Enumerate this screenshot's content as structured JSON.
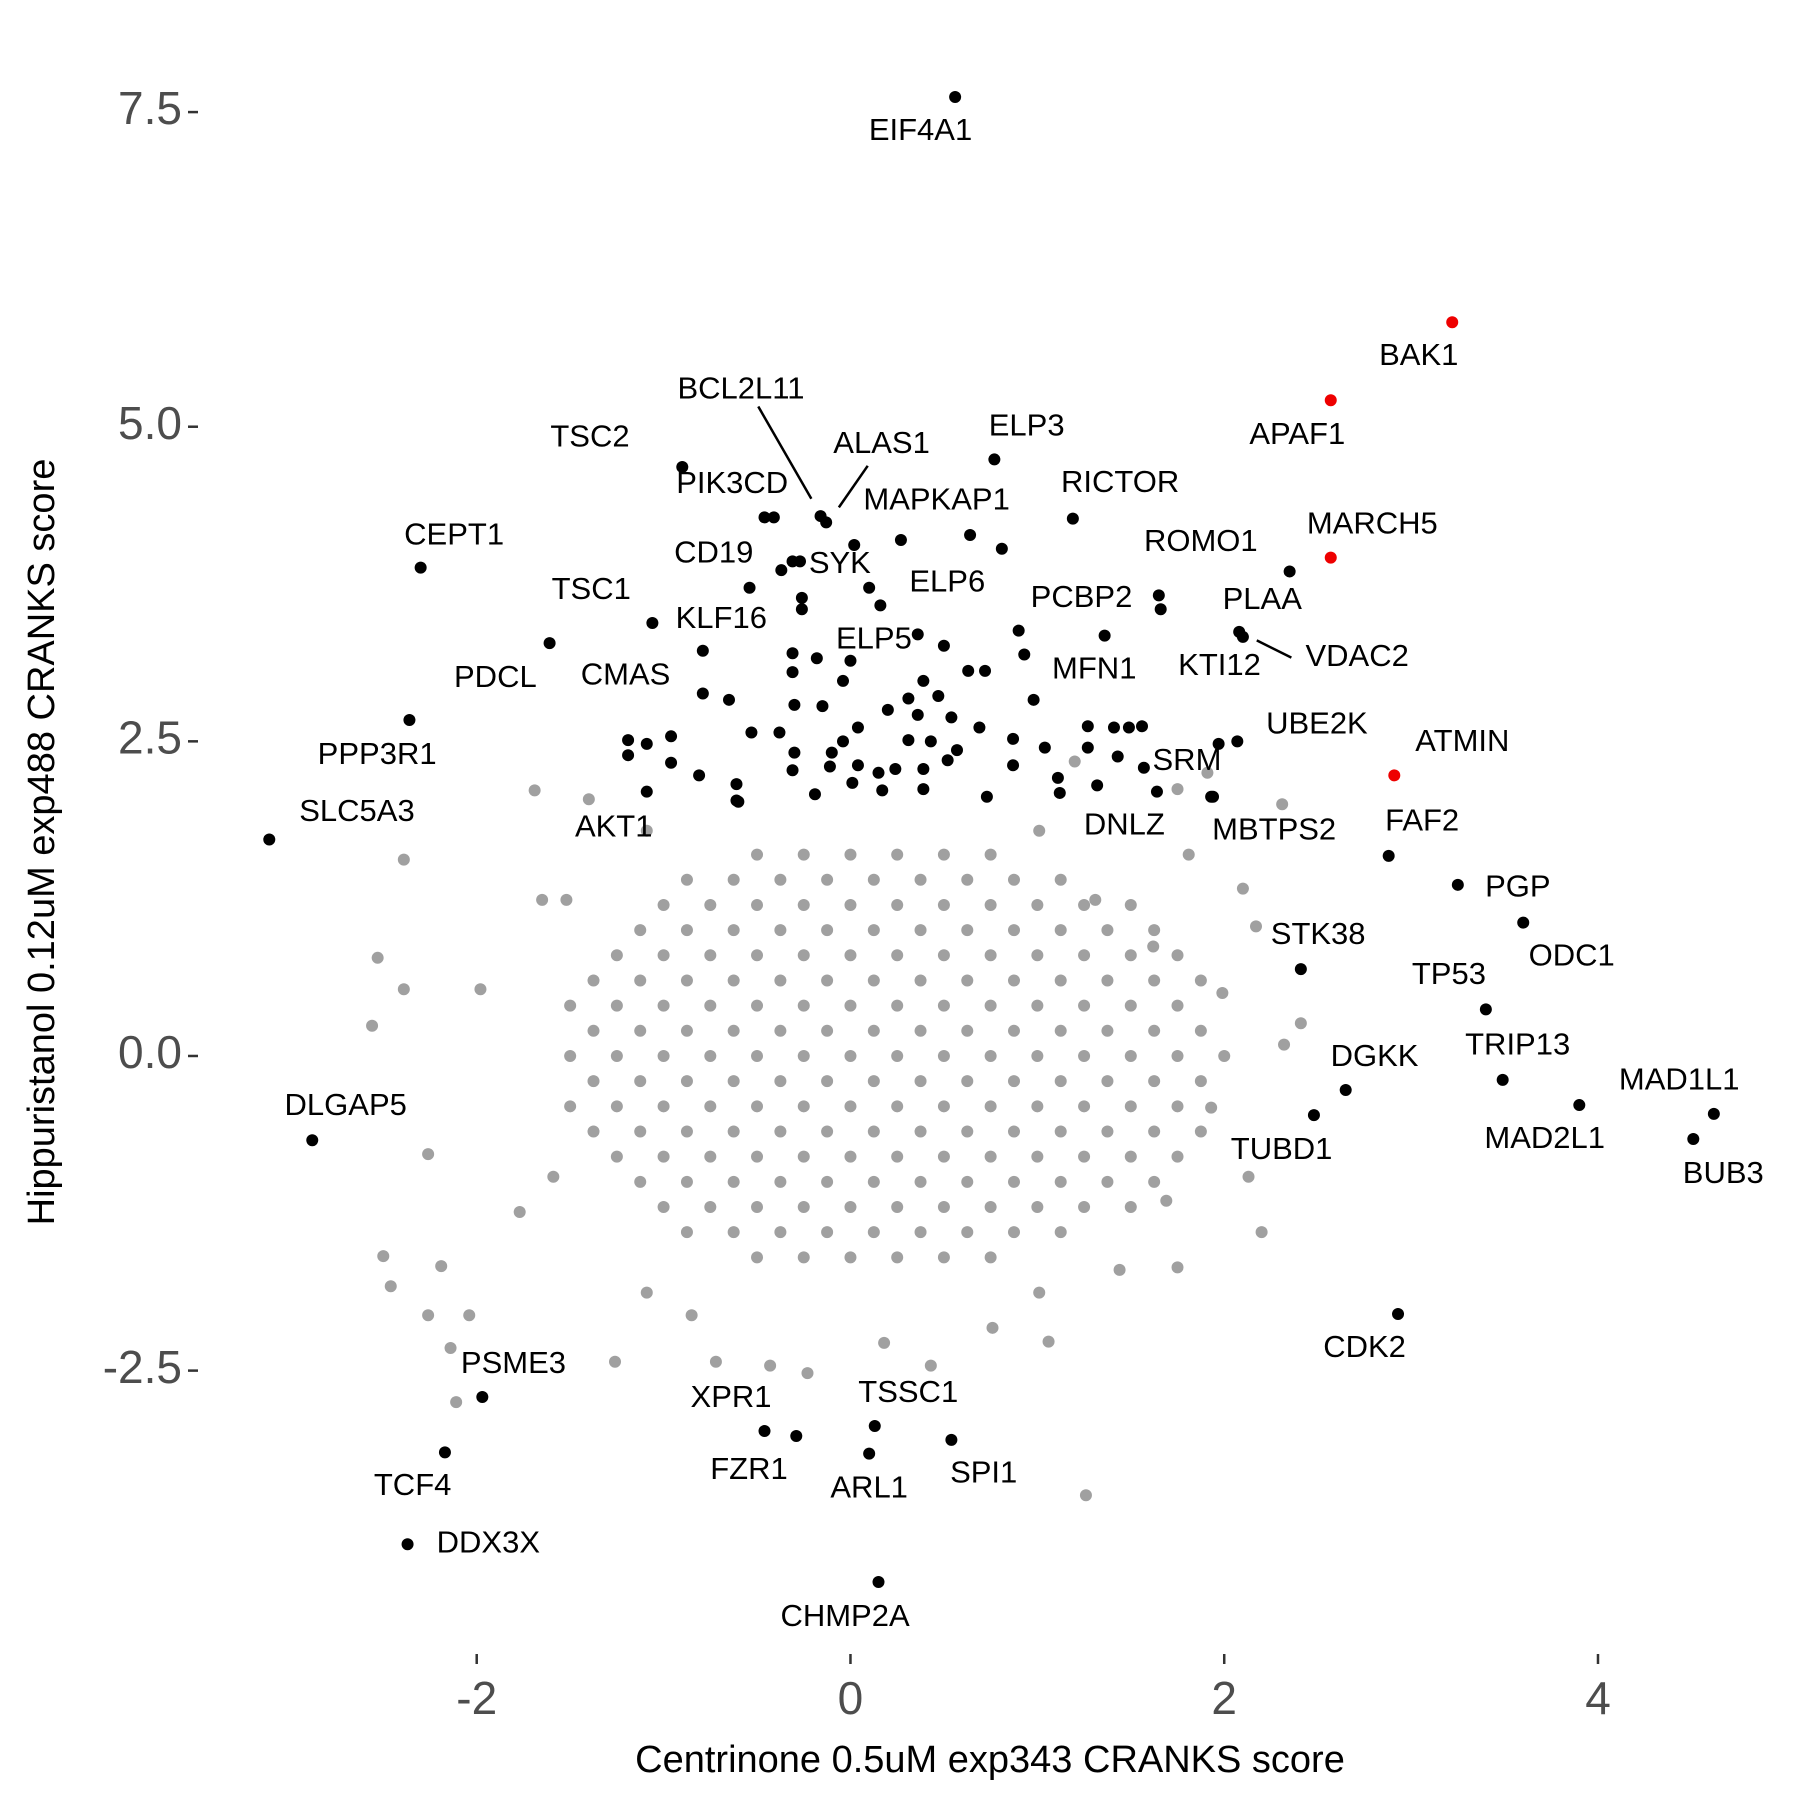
{
  "chart_data": {
    "type": "scatter",
    "xlabel": "Centrinone 0.5uM exp343 CRANKS score",
    "ylabel": "Hippuristanol 0.12uM exp488 CRANKS score",
    "xlim": [
      -3.47,
      4.99
    ],
    "ylim": [
      -4.72,
      7.89
    ],
    "xticks": [
      -2,
      0,
      2,
      4
    ],
    "yticks": [
      -2.5,
      {
        "value": 0,
        "label": "0.0"
      },
      2.5,
      {
        "value": 5,
        "label": "5.0"
      },
      7.5
    ],
    "series": [
      {
        "color": "#a0a0a0",
        "x": [
          -0.5,
          -0.25,
          0,
          0.25,
          0.5,
          0.75,
          -0.875,
          -0.625,
          -0.375,
          -0.125,
          0.125,
          0.375,
          0.625,
          0.875,
          1.125,
          -1,
          -0.75,
          -0.5,
          -0.25,
          0,
          0.25,
          0.5,
          0.75,
          1,
          1.25,
          1.5,
          -1.125,
          -0.875,
          -0.625,
          -0.375,
          -0.125,
          0.125,
          0.375,
          0.625,
          0.875,
          1.125,
          1.375,
          1.625,
          -1.25,
          -1,
          -0.75,
          -0.5,
          -0.25,
          0,
          0.25,
          0.5,
          0.75,
          1,
          1.25,
          1.5,
          1.75,
          -1.375,
          -1.125,
          -0.875,
          -0.625,
          -0.375,
          -0.125,
          0.125,
          0.375,
          0.625,
          0.875,
          1.125,
          1.375,
          1.625,
          1.875,
          -1.5,
          -1.25,
          -1,
          -0.75,
          -0.5,
          -0.25,
          0,
          0.25,
          0.5,
          0.75,
          1,
          1.25,
          1.5,
          1.75,
          -1.375,
          -1.125,
          -0.875,
          -0.625,
          -0.375,
          -0.125,
          0.125,
          0.375,
          0.625,
          0.875,
          1.125,
          1.375,
          1.625,
          1.875,
          -1.5,
          -1.25,
          -1,
          -0.75,
          -0.5,
          -0.25,
          0,
          0.25,
          0.5,
          0.75,
          1,
          1.25,
          1.5,
          1.75,
          2,
          -1.375,
          -1.125,
          -0.875,
          -0.625,
          -0.375,
          -0.125,
          0.125,
          0.375,
          0.625,
          0.875,
          1.125,
          1.375,
          1.625,
          1.875,
          -1.5,
          -1.25,
          -1,
          -0.75,
          -0.5,
          -0.25,
          0,
          0.25,
          0.5,
          0.75,
          1,
          1.25,
          1.5,
          1.75,
          -1.375,
          -1.125,
          -0.875,
          -0.625,
          -0.375,
          -0.125,
          0.125,
          0.375,
          0.625,
          0.875,
          1.125,
          1.375,
          1.625,
          1.875,
          -1.25,
          -1,
          -0.75,
          -0.5,
          -0.25,
          0,
          0.25,
          0.5,
          0.75,
          1,
          1.25,
          1.5,
          1.75,
          -1.125,
          -0.875,
          -0.625,
          -0.375,
          -0.125,
          0.125,
          0.375,
          0.625,
          0.875,
          1.125,
          1.375,
          1.625,
          -1,
          -0.75,
          -0.5,
          -0.25,
          0,
          0.25,
          0.5,
          0.75,
          1,
          1.25,
          1.5,
          -0.875,
          -0.625,
          -0.375,
          -0.125,
          0.125,
          0.375,
          0.625,
          0.875,
          1.125,
          -0.5,
          -0.25,
          0,
          0.25,
          0.5,
          0.75,
          -1.69,
          -2.39,
          -2.53,
          -2.39,
          -2.56,
          -2.5,
          -2.46,
          -2.26,
          -2.04,
          -2.14,
          -2.11,
          -2.19,
          -2.26,
          -1.98,
          1.26,
          1.06,
          1.75,
          2.2,
          2.13,
          2.32,
          2.41,
          2.17,
          2.1,
          2.31,
          1.75,
          1.91,
          1.81,
          1.2,
          -1.4,
          -1.52,
          -1.26,
          -0.43,
          0.43,
          0.18,
          -0.72,
          -0.23,
          0.76,
          1.44,
          -1.77,
          -1.65,
          1.93,
          1.99,
          -1.09,
          1.01,
          1.31,
          1.62,
          1.69,
          -1.09,
          -1.59,
          -0.85,
          1.01
        ],
        "y": [
          1.6,
          1.6,
          1.6,
          1.6,
          1.6,
          1.6,
          1.4,
          1.4,
          1.4,
          1.4,
          1.4,
          1.4,
          1.4,
          1.4,
          1.4,
          1.2,
          1.2,
          1.2,
          1.2,
          1.2,
          1.2,
          1.2,
          1.2,
          1.2,
          1.2,
          1.2,
          1,
          1,
          1,
          1,
          1,
          1,
          1,
          1,
          1,
          1,
          1,
          1,
          0.8,
          0.8,
          0.8,
          0.8,
          0.8,
          0.8,
          0.8,
          0.8,
          0.8,
          0.8,
          0.8,
          0.8,
          0.8,
          0.6,
          0.6,
          0.6,
          0.6,
          0.6,
          0.6,
          0.6,
          0.6,
          0.6,
          0.6,
          0.6,
          0.6,
          0.6,
          0.6,
          0.4,
          0.4,
          0.4,
          0.4,
          0.4,
          0.4,
          0.4,
          0.4,
          0.4,
          0.4,
          0.4,
          0.4,
          0.4,
          0.4,
          0.2,
          0.2,
          0.2,
          0.2,
          0.2,
          0.2,
          0.2,
          0.2,
          0.2,
          0.2,
          0.2,
          0.2,
          0.2,
          0.2,
          0,
          0,
          0,
          0,
          0,
          0,
          0,
          0,
          0,
          0,
          0,
          0,
          0,
          0,
          0,
          -0.2,
          -0.2,
          -0.2,
          -0.2,
          -0.2,
          -0.2,
          -0.2,
          -0.2,
          -0.2,
          -0.2,
          -0.2,
          -0.2,
          -0.2,
          -0.2,
          -0.4,
          -0.4,
          -0.4,
          -0.4,
          -0.4,
          -0.4,
          -0.4,
          -0.4,
          -0.4,
          -0.4,
          -0.4,
          -0.4,
          -0.4,
          -0.4,
          -0.6,
          -0.6,
          -0.6,
          -0.6,
          -0.6,
          -0.6,
          -0.6,
          -0.6,
          -0.6,
          -0.6,
          -0.6,
          -0.6,
          -0.6,
          -0.6,
          -0.8,
          -0.8,
          -0.8,
          -0.8,
          -0.8,
          -0.8,
          -0.8,
          -0.8,
          -0.8,
          -0.8,
          -0.8,
          -0.8,
          -0.8,
          -1,
          -1,
          -1,
          -1,
          -1,
          -1,
          -1,
          -1,
          -1,
          -1,
          -1,
          -1,
          -1.2,
          -1.2,
          -1.2,
          -1.2,
          -1.2,
          -1.2,
          -1.2,
          -1.2,
          -1.2,
          -1.2,
          -1.2,
          -1.4,
          -1.4,
          -1.4,
          -1.4,
          -1.4,
          -1.4,
          -1.4,
          -1.4,
          -1.4,
          -1.6,
          -1.6,
          -1.6,
          -1.6,
          -1.6,
          -1.6,
          2.11,
          1.56,
          0.78,
          0.53,
          0.24,
          -1.59,
          -1.83,
          -2.06,
          -2.06,
          -2.32,
          -2.75,
          -1.67,
          -0.78,
          0.53,
          -3.49,
          -2.27,
          -1.68,
          -1.4,
          -0.96,
          0.09,
          0.26,
          1.03,
          1.33,
          2,
          2.12,
          2.25,
          1.6,
          2.34,
          2.04,
          1.24,
          -2.43,
          -2.46,
          -2.46,
          -2.28,
          -2.43,
          -2.52,
          -2.16,
          -1.7,
          -1.24,
          1.24,
          -0.41,
          0.5,
          1.79,
          1.79,
          1.24,
          0.87,
          -1.15,
          -1.88,
          -0.96,
          -2.06,
          -1.88
        ]
      },
      {
        "color": "#000000",
        "x": [
          -0.41,
          0.02,
          0.27,
          0.81,
          -0.37,
          -0.27,
          -0.26,
          -0.26,
          0.1,
          0.9,
          0.93,
          0.5,
          -0.31,
          -0.18,
          0,
          -0.04,
          -0.65,
          -0.31,
          -0.3,
          -0.15,
          0.39,
          0.63,
          0.72,
          0.98,
          0.31,
          0.2,
          0.36,
          0.47,
          0.54,
          0.69,
          0.43,
          0.31,
          0.04,
          -0.04,
          -0.1,
          -0.38,
          -0.53,
          -1.19,
          -1.09,
          -0.96,
          -1.19,
          -0.96,
          -1.09,
          -0.81,
          -0.61,
          -0.61,
          -0.3,
          -0.31,
          -0.19,
          -0.11,
          0.04,
          0.01,
          0.15,
          0.24,
          0.39,
          0.57,
          0.52,
          0.39,
          0.17,
          0.73,
          0.87,
          0.87,
          1.04,
          1.27,
          1.41,
          1.49,
          1.56,
          1.43,
          1.27,
          1.11,
          1.32,
          1.57,
          1.97,
          1.93
        ],
        "y": [
          4.28,
          4.06,
          4.1,
          4.03,
          3.86,
          3.93,
          3.64,
          3.55,
          3.72,
          3.38,
          3.19,
          3.26,
          3.2,
          3.16,
          3.14,
          2.98,
          2.83,
          3.05,
          2.79,
          2.78,
          2.98,
          3.06,
          3.06,
          2.83,
          2.84,
          2.75,
          2.71,
          2.86,
          2.69,
          2.61,
          2.5,
          2.51,
          2.61,
          2.5,
          2.41,
          2.57,
          2.57,
          2.51,
          2.48,
          2.54,
          2.39,
          2.33,
          2.1,
          2.23,
          2.16,
          2.03,
          2.41,
          2.27,
          2.08,
          2.3,
          2.31,
          2.17,
          2.25,
          2.28,
          2.28,
          2.43,
          2.35,
          2.12,
          2.11,
          2.06,
          2.52,
          2.31,
          2.45,
          2.62,
          2.61,
          2.61,
          2.62,
          2.38,
          2.45,
          2.21,
          2.15,
          2.29,
          2.48,
          2.06
        ]
      },
      {
        "color": "#000000",
        "labels": [
          "EIF4A1",
          "BCL2L11",
          "ALAS1",
          "TSC2",
          "PIK3CD",
          "ELP3",
          "RICTOR",
          "MAPKAP1",
          "CEPT1",
          "ROMO1",
          "CD19",
          "SYK",
          "ELP6",
          "PCBP2",
          "TSC1",
          "KLF16",
          "PLAA",
          "VDAC2",
          "ELP5",
          "MFN1",
          "KTI12",
          "PDCL",
          "CMAS",
          "PPP3R1",
          "UBE2K",
          "SRM",
          "SLC5A3",
          "AKT1",
          "DNLZ",
          "MBTPS2",
          "FAF2",
          "PGP",
          "ODC1",
          "STK38",
          "TP53",
          "TRIP13",
          "DGKK",
          "MAD1L1",
          "MAD2L1",
          "BUB3",
          "TUBD1",
          "DLGAP5",
          "CDK2",
          "PSME3",
          "XPR1",
          "TSSC1",
          "FZR1",
          "ARL1",
          "SPI1",
          "TCF4",
          "DDX3X",
          "CHMP2A"
        ],
        "x": [
          0.56,
          -0.16,
          -0.13,
          -0.9,
          -0.46,
          0.77,
          1.19,
          0.64,
          -2.3,
          2.35,
          -0.54,
          -0.31,
          0.16,
          1.65,
          -1.06,
          -0.79,
          2.08,
          2.1,
          0.36,
          1.36,
          1.66,
          -1.61,
          -0.79,
          -2.36,
          2.07,
          1.64,
          -3.11,
          -0.6,
          1.12,
          1.94,
          2.88,
          3.25,
          3.6,
          2.41,
          3.4,
          3.49,
          2.65,
          4.62,
          3.9,
          4.51,
          2.48,
          -2.88,
          2.93,
          -1.97,
          -0.46,
          0.13,
          -0.29,
          0.1,
          0.54,
          -2.17,
          -2.37,
          0.15
        ],
        "y": [
          7.62,
          4.29,
          4.24,
          4.68,
          4.28,
          4.74,
          4.27,
          4.14,
          3.88,
          3.85,
          3.72,
          3.93,
          3.58,
          3.66,
          3.44,
          3.22,
          3.37,
          3.33,
          3.35,
          3.34,
          3.55,
          3.28,
          2.88,
          2.67,
          2.5,
          2.1,
          1.72,
          2.02,
          2.09,
          2.06,
          1.59,
          1.36,
          1.06,
          0.69,
          0.37,
          -0.19,
          -0.27,
          -0.46,
          -0.39,
          -0.66,
          -0.47,
          -0.67,
          -2.05,
          -2.71,
          -2.98,
          -2.94,
          -3.02,
          -3.16,
          -3.05,
          -3.15,
          -3.88,
          -4.18
        ]
      },
      {
        "color": "#ee0000",
        "labels": [
          "BAK1",
          "APAF1",
          "MARCH5",
          "ATMIN"
        ],
        "x": [
          3.22,
          2.57,
          2.57,
          2.91
        ],
        "y": [
          5.83,
          5.21,
          3.96,
          2.23
        ]
      }
    ]
  }
}
